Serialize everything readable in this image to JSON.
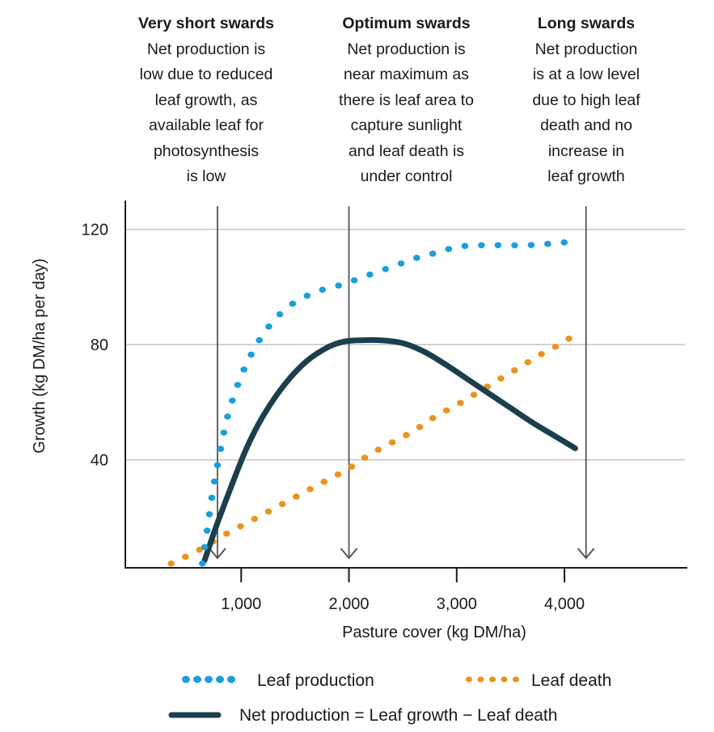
{
  "annotations": [
    {
      "heading": "Very short swards",
      "lines": [
        "Net production is",
        "low due to reduced",
        "leaf growth, as",
        "available leaf for",
        "photosynthesis",
        "is low"
      ],
      "pointer_x": 780
    },
    {
      "heading": "Optimum swards",
      "lines": [
        "Net production is",
        "near maximum as",
        "there is leaf area to",
        "capture sunlight",
        "and leaf death is",
        "under control"
      ],
      "pointer_x": 2000
    },
    {
      "heading": "Long swards",
      "lines": [
        "Net production",
        "is at a low level",
        "due to high leaf",
        "death and no",
        "increase in",
        "leaf growth"
      ],
      "pointer_x": 4200
    }
  ],
  "colors": {
    "leaf_production": "#1a9fd8",
    "leaf_death": "#e8941e",
    "net_production": "#1c3f4e",
    "gridline": "#c4c4c4",
    "axis": "#1a1a1a",
    "pointer": "#555555"
  },
  "chart_data": {
    "type": "line",
    "title": "",
    "xlabel": "Pasture cover (kg DM/ha)",
    "ylabel": "Growth (kg DM/ha per day)",
    "xlim": [
      -75,
      5140
    ],
    "ylim": [
      2.5,
      130
    ],
    "xticks": [
      1000,
      2000,
      3000,
      4000
    ],
    "xtick_labels": [
      "1,000",
      "2,000",
      "3,000",
      "4,000"
    ],
    "yticks": [
      40,
      80,
      120
    ],
    "ytick_labels": [
      "40",
      "80",
      "120"
    ],
    "grid": "horizontal",
    "legend_position": "bottom",
    "series": [
      {
        "name": "Leaf production",
        "style": "dotted",
        "x": [
          640,
          690,
          740,
          790,
          860,
          930,
          1010,
          1100,
          1230,
          1400,
          1560,
          1750,
          1950,
          2170,
          2400,
          2620,
          2820,
          3020,
          3230,
          3450,
          3650,
          3850,
          4000
        ],
        "y": [
          4,
          17,
          30,
          40,
          53,
          62,
          70,
          77,
          85,
          92,
          96,
          99,
          101,
          104,
          107,
          110,
          112,
          114,
          114.5,
          114.5,
          114.5,
          115,
          115.5
        ]
      },
      {
        "name": "Leaf death",
        "style": "dotted",
        "x": [
          350,
          600,
          800,
          1000,
          1200,
          1400,
          1600,
          1800,
          2000,
          2200,
          2400,
          2600,
          2800,
          3000,
          3200,
          3400,
          3600,
          3800,
          4000,
          4100
        ],
        "y": [
          4,
          8.5,
          13,
          17,
          21,
          25,
          29,
          33,
          37,
          42,
          46,
          50,
          55,
          59,
          63.5,
          68,
          72.5,
          77,
          81,
          84
        ]
      },
      {
        "name": "Net production = Leaf growth − Leaf death",
        "style": "solid",
        "x": [
          660,
          760,
          900,
          1050,
          1200,
          1400,
          1600,
          1800,
          1950,
          2100,
          2300,
          2500,
          2700,
          2900,
          3100,
          3300,
          3500,
          3700,
          3900,
          4100
        ],
        "y": [
          5,
          16,
          30,
          44,
          55,
          66,
          74,
          79,
          81,
          81.5,
          81.5,
          80.5,
          77.5,
          73,
          68,
          63,
          58,
          53,
          48.5,
          44
        ]
      }
    ],
    "pointers": [
      {
        "label": "Very short swards",
        "x": 780
      },
      {
        "label": "Optimum swards",
        "x": 2000
      },
      {
        "label": "Long swards",
        "x": 4200
      }
    ]
  },
  "legend": [
    {
      "label": "Leaf production",
      "style": "dotted",
      "color_key": "leaf_production"
    },
    {
      "label": "Leaf death",
      "style": "dotted",
      "color_key": "leaf_death"
    },
    {
      "label": "Net production = Leaf growth − Leaf death",
      "style": "solid",
      "color_key": "net_production"
    }
  ]
}
